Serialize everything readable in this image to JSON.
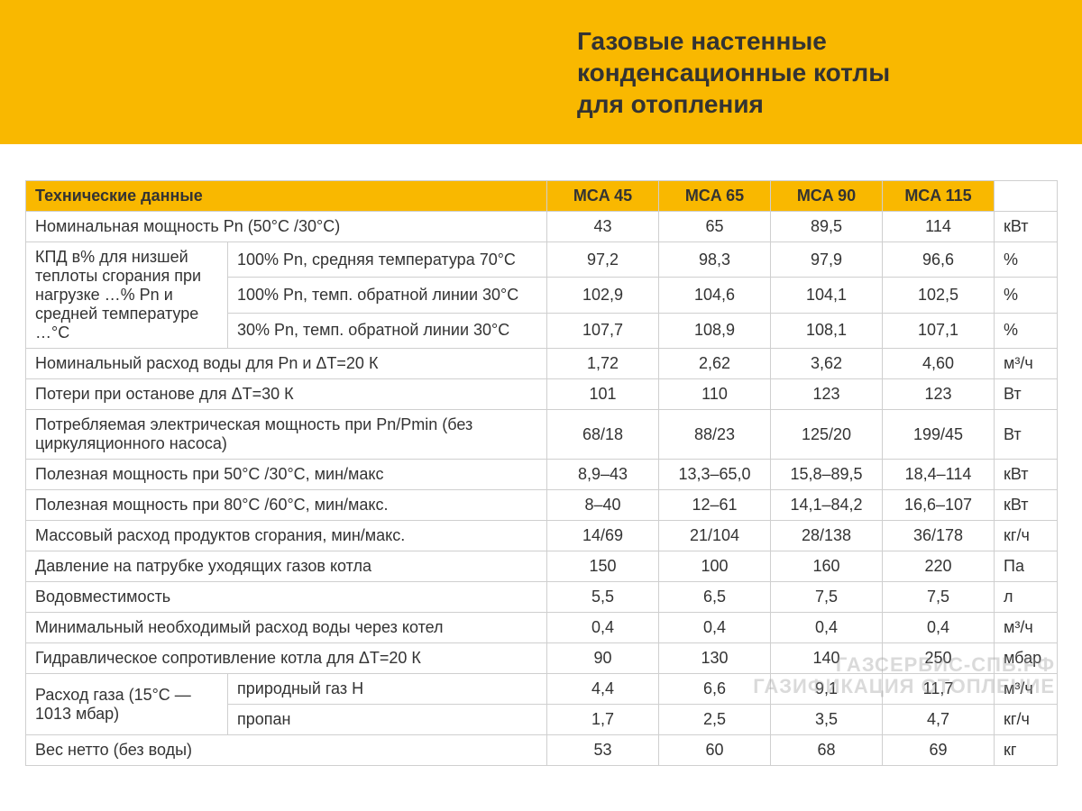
{
  "colors": {
    "accent": "#f9b800",
    "border": "#cfcfcf",
    "text": "#333333",
    "background": "#ffffff"
  },
  "typography": {
    "title_fontsize": 28,
    "body_fontsize": 18,
    "font_family": "Arial"
  },
  "banner": {
    "title": "Газовые настенные\nконденсационные котлы\nдля отопления"
  },
  "table": {
    "header_label": "Технические данные",
    "models": [
      "MCA 45",
      "MCA 65",
      "MCA 90",
      "MCA 115"
    ],
    "rows": [
      {
        "label": "Номинальная мощность Pn (50°C /30°C)",
        "colspan": 2,
        "values": [
          "43",
          "65",
          "89,5",
          "114"
        ],
        "unit": "кВт"
      },
      {
        "group": "КПД в% для низшей теплоты сгорания при нагрузке …% Pn и средней температуре …°C",
        "rowspan": 3,
        "sub": "100% Pn, средняя температура 70°C",
        "values": [
          "97,2",
          "98,3",
          "97,9",
          "96,6"
        ],
        "unit": "%"
      },
      {
        "sub": "100% Pn, темп. обратной линии 30°C",
        "values": [
          "102,9",
          "104,6",
          "104,1",
          "102,5"
        ],
        "unit": "%"
      },
      {
        "sub": "30% Pn, темп. обратной линии 30°C",
        "values": [
          "107,7",
          "108,9",
          "108,1",
          "107,1"
        ],
        "unit": "%"
      },
      {
        "label": "Номинальный расход воды для Pn и ΔT=20 К",
        "colspan": 2,
        "values": [
          "1,72",
          "2,62",
          "3,62",
          "4,60"
        ],
        "unit": "м³/ч"
      },
      {
        "label": "Потери при останове для ΔT=30 К",
        "colspan": 2,
        "values": [
          "101",
          "110",
          "123",
          "123"
        ],
        "unit": "Вт"
      },
      {
        "label": "Потребляемая электрическая мощность при Pn/Pmin (без циркуляционного насоса)",
        "colspan": 2,
        "values": [
          "68/18",
          "88/23",
          "125/20",
          "199/45"
        ],
        "unit": "Вт"
      },
      {
        "label": "Полезная мощность при 50°C /30°C, мин/макс",
        "colspan": 2,
        "values": [
          "8,9–43",
          "13,3–65,0",
          "15,8–89,5",
          "18,4–114"
        ],
        "unit": "кВт"
      },
      {
        "label": "Полезная мощность при 80°C /60°C, мин/макс.",
        "colspan": 2,
        "values": [
          "8–40",
          "12–61",
          "14,1–84,2",
          "16,6–107"
        ],
        "unit": "кВт"
      },
      {
        "label": "Массовый расход продуктов сгорания, мин/макс.",
        "colspan": 2,
        "values": [
          "14/69",
          "21/104",
          "28/138",
          "36/178"
        ],
        "unit": "кг/ч"
      },
      {
        "label": "Давление на патрубке уходящих газов котла",
        "colspan": 2,
        "values": [
          "150",
          "100",
          "160",
          "220"
        ],
        "unit": "Па"
      },
      {
        "label": "Водовместимость",
        "colspan": 2,
        "values": [
          "5,5",
          "6,5",
          "7,5",
          "7,5"
        ],
        "unit": "л"
      },
      {
        "label": "Минимальный необходимый расход воды через котел",
        "colspan": 2,
        "values": [
          "0,4",
          "0,4",
          "0,4",
          "0,4"
        ],
        "unit": "м³/ч"
      },
      {
        "label": "Гидравлическое сопротивление котла для ΔT=20 К",
        "colspan": 2,
        "values": [
          "90",
          "130",
          "140",
          "250"
        ],
        "unit": "мбар"
      },
      {
        "group": "Расход газа (15°C — 1013 мбар)",
        "rowspan": 2,
        "sub": "природный газ H",
        "values": [
          "4,4",
          "6,6",
          "9,1",
          "11,7"
        ],
        "unit": "м³/ч"
      },
      {
        "sub": "пропан",
        "values": [
          "1,7",
          "2,5",
          "3,5",
          "4,7"
        ],
        "unit": "кг/ч"
      },
      {
        "label": "Вес нетто (без воды)",
        "colspan": 2,
        "values": [
          "53",
          "60",
          "68",
          "69"
        ],
        "unit": "кг"
      }
    ]
  },
  "watermark": "ГАЗСЕРВИС-СПБ.РФ\nГАЗИФИКАЦИЯ ОТОПЛЕНИЕ"
}
